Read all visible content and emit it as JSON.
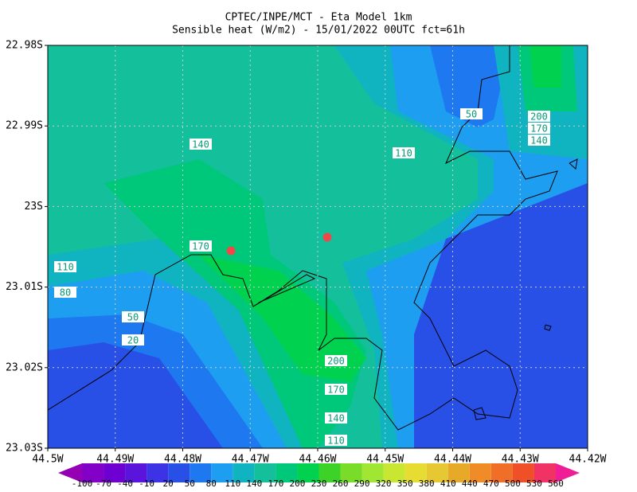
{
  "title": "CPTEC/INPE/MCT -  Eta Model 1km",
  "subtitle": "Sensible heat (W/m2) - 15/01/2022 00UTC fct=61h",
  "x_ticks": [
    "44.5W",
    "44.49W",
    "44.48W",
    "44.47W",
    "44.46W",
    "44.45W",
    "44.44W",
    "44.43W",
    "44.42W"
  ],
  "y_ticks": [
    "22.98S",
    "22.99S",
    "23S",
    "23.01S",
    "23.02S",
    "23.03S"
  ],
  "contour_labels": [
    140,
    110,
    50,
    200,
    170,
    140,
    170,
    110,
    80,
    50,
    20,
    200,
    170,
    140,
    110
  ],
  "colorbar": {
    "levels": [
      -100,
      -70,
      -40,
      -10,
      20,
      50,
      80,
      110,
      140,
      170,
      200,
      230,
      260,
      290,
      320,
      350,
      380,
      410,
      440,
      470,
      500,
      530,
      560
    ],
    "colors": [
      "#9600b4",
      "#8200c8",
      "#6e00d2",
      "#5a14dc",
      "#3c32e6",
      "#2850e6",
      "#1e78f0",
      "#1e9ef0",
      "#10b4c0",
      "#14c09c",
      "#00c87a",
      "#00d250",
      "#3cd228",
      "#78dc28",
      "#a0e632",
      "#c8e632",
      "#e6dc32",
      "#e6c832",
      "#e6aa28",
      "#f08c28",
      "#f06e28",
      "#f05028",
      "#f03264",
      "#f01e96"
    ]
  }
}
